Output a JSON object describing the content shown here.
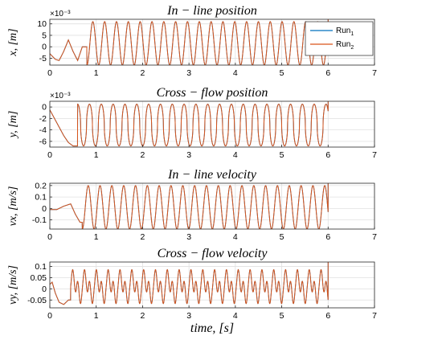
{
  "chart_data": [
    {
      "type": "line",
      "title": "In − line   position",
      "ylabel": "x, [m]",
      "exponent": "×10⁻³",
      "xlim": [
        0,
        7
      ],
      "ylim": [
        -8,
        12
      ],
      "yticks": [
        -5,
        0,
        5,
        10
      ],
      "xticks": [
        0,
        1,
        2,
        3,
        4,
        5,
        6,
        7
      ],
      "grid": true,
      "legend": {
        "placement": "top-right",
        "entries": [
          {
            "name": "Run",
            "sub": "1",
            "color": "#0072BD"
          },
          {
            "name": "Run",
            "sub": "2",
            "color": "#D95319"
          }
        ]
      },
      "series_shape": {
        "kind": "sine",
        "period": 0.255,
        "min": -8,
        "max": 11,
        "start": 0.8,
        "end": 6,
        "transient": [
          [
            0,
            -3
          ],
          [
            0.12,
            -5.5
          ],
          [
            0.2,
            -6
          ],
          [
            0.3,
            -2
          ],
          [
            0.4,
            3
          ],
          [
            0.5,
            -2
          ],
          [
            0.6,
            -6
          ],
          [
            0.7,
            0
          ]
        ]
      }
    },
    {
      "type": "line",
      "title": "Cross − flow   position",
      "ylabel": "y, [m]",
      "exponent": "×10⁻³",
      "xlim": [
        0,
        7
      ],
      "ylim": [
        -7,
        1
      ],
      "yticks": [
        -6,
        -4,
        -2,
        0
      ],
      "xticks": [
        0,
        1,
        2,
        3,
        4,
        5,
        6,
        7
      ],
      "grid": true,
      "series_shape": {
        "kind": "pulse",
        "period": 0.255,
        "min": -6.8,
        "max": 0.5,
        "start": 0.6,
        "end": 6,
        "transient": [
          [
            0,
            -0.5
          ],
          [
            0.1,
            -2
          ],
          [
            0.2,
            -3.5
          ],
          [
            0.3,
            -5
          ],
          [
            0.4,
            -6.2
          ],
          [
            0.5,
            -6.8
          ]
        ]
      }
    },
    {
      "type": "line",
      "title": "In − line   velocity",
      "ylabel": "vx, [m/s]",
      "exponent": "",
      "xlim": [
        0,
        7
      ],
      "ylim": [
        -0.18,
        0.22
      ],
      "yticks": [
        -0.1,
        0,
        0.1,
        0.2
      ],
      "xticks": [
        0,
        1,
        2,
        3,
        4,
        5,
        6,
        7
      ],
      "grid": true,
      "series_shape": {
        "kind": "sine",
        "period": 0.255,
        "min": -0.18,
        "max": 0.2,
        "start": 0.7,
        "end": 6,
        "transient": [
          [
            0,
            -0.01
          ],
          [
            0.15,
            -0.01
          ],
          [
            0.3,
            0.02
          ],
          [
            0.45,
            0.04
          ],
          [
            0.55,
            -0.05
          ],
          [
            0.65,
            -0.12
          ]
        ]
      }
    },
    {
      "type": "line",
      "title": "Cross − flow   velocity",
      "ylabel": "vy, [m/s]",
      "exponent": "",
      "xlim": [
        0,
        7
      ],
      "ylim": [
        -0.085,
        0.12
      ],
      "yticks": [
        -0.05,
        0,
        0.05,
        0.1
      ],
      "xticks": [
        0,
        1,
        2,
        3,
        4,
        5,
        6,
        7
      ],
      "xlabel": "time, [s]",
      "grid": true,
      "series_shape": {
        "kind": "double",
        "period": 0.255,
        "min": -0.08,
        "max": 0.1,
        "start": 0.45,
        "end": 6,
        "transient": [
          [
            0,
            0.02
          ],
          [
            0.05,
            0.03
          ],
          [
            0.12,
            -0.02
          ],
          [
            0.2,
            -0.06
          ],
          [
            0.3,
            -0.07
          ],
          [
            0.4,
            -0.05
          ]
        ]
      }
    }
  ]
}
